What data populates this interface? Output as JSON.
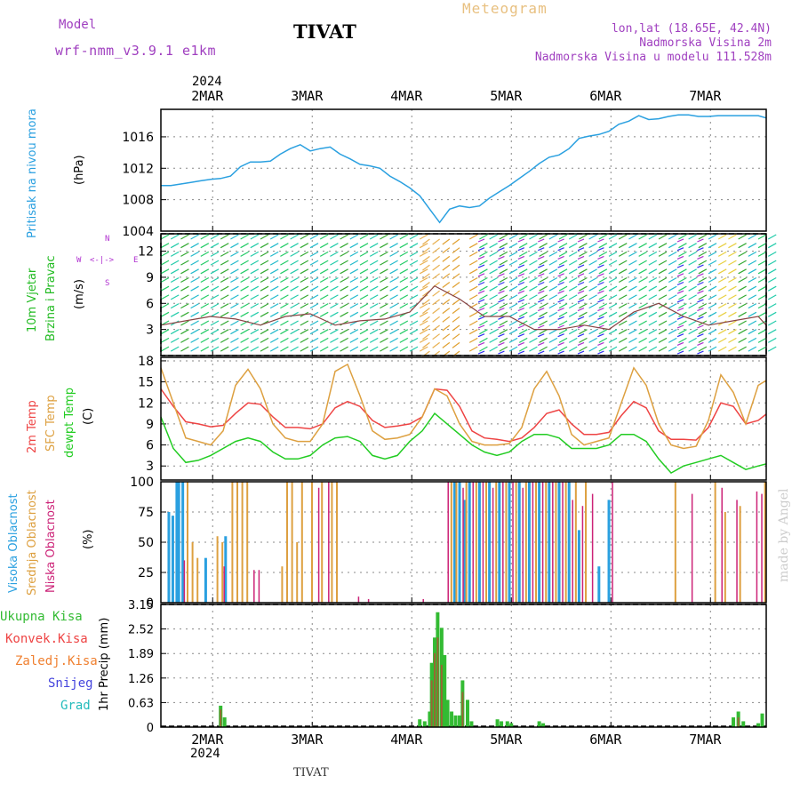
{
  "header": {
    "model_label": "Model",
    "model_name": "wrf-nmm_v3.9.1 e1km",
    "station": "TIVAT",
    "title": "Meteogram",
    "lonlat": "lon,lat (18.65E, 42.4N)",
    "elevation": "Nadmorska Visina 2m",
    "model_elevation": "Nadmorska Visina u modelu 111.528m",
    "footer_station": "TIVAT",
    "credit": "made by Angel"
  },
  "colors": {
    "pressure": "#2aa0e0",
    "temp2m": "#ee4444",
    "sfc_temp": "#dda040",
    "dewpoint": "#22cc22",
    "high_cloud": "#2aa0e0",
    "mid_cloud": "#dda040",
    "low_cloud": "#cc2277",
    "total_precip": "#33bb33",
    "conv_precip": "#ee4444",
    "freezing": "#f08030",
    "snow": "#4444dd",
    "hail": "#22bbbb",
    "header_purple": "#a040c0",
    "meteogram_title": "#e8c080"
  },
  "time_axis": {
    "year": "2024",
    "days": [
      "2MAR",
      "3MAR",
      "4MAR",
      "5MAR",
      "6MAR",
      "7MAR"
    ],
    "range_days": [
      0,
      6.08
    ]
  },
  "chart_data": [
    {
      "type": "line",
      "panel": "pressure",
      "ylabel": "Pritisak na nivou mora",
      "unit": "(hPa)",
      "yticks": [
        "1004",
        "1008",
        "1012",
        "1016"
      ],
      "ylim": [
        1004,
        1019.5
      ],
      "series": [
        {
          "x": [
            0,
            0.1,
            0.2,
            0.3,
            0.4,
            0.5,
            0.6,
            0.7,
            0.8,
            0.9,
            1.0,
            1.1,
            1.2,
            1.3,
            1.4,
            1.5,
            1.6,
            1.7,
            1.8,
            1.9,
            2.0,
            2.1,
            2.2,
            2.3,
            2.4,
            2.5,
            2.6,
            2.7,
            2.8,
            2.9,
            3.0,
            3.1,
            3.2,
            3.3,
            3.4,
            3.5,
            3.6,
            3.7,
            3.8,
            3.9,
            4.0,
            4.1,
            4.2,
            4.3,
            4.4,
            4.5,
            4.6,
            4.7,
            4.8,
            4.9,
            5.0,
            5.1,
            5.2,
            5.3,
            5.4,
            5.5,
            5.6,
            5.7,
            5.8,
            5.9,
            6.0,
            6.08
          ],
          "values": [
            1009.8,
            1009.8,
            1010.0,
            1010.2,
            1010.4,
            1010.6,
            1010.7,
            1011.0,
            1012.2,
            1012.8,
            1012.8,
            1012.9,
            1013.8,
            1014.5,
            1015.0,
            1014.2,
            1014.5,
            1014.7,
            1013.8,
            1013.2,
            1012.5,
            1012.3,
            1012.0,
            1011.0,
            1010.3,
            1009.5,
            1008.5,
            1006.8,
            1005.1,
            1006.8,
            1007.2,
            1007.0,
            1007.2,
            1008.2,
            1009.0,
            1009.8,
            1010.7,
            1011.6,
            1012.6,
            1013.4,
            1013.7,
            1014.5,
            1015.8,
            1016.1,
            1016.3,
            1016.7,
            1017.6,
            1018.0,
            1018.7,
            1018.2,
            1018.3,
            1018.6,
            1018.8,
            1018.8,
            1018.6,
            1018.6,
            1018.7,
            1018.7,
            1018.7,
            1018.7,
            1018.7,
            1018.4
          ]
        }
      ]
    },
    {
      "type": "line",
      "panel": "wind",
      "ylabel": "10m Vjetar",
      "ylabel2": "Brzina i Pravac",
      "unit": "(m/s)",
      "direction_legend": [
        "N",
        "W",
        "E",
        "S"
      ],
      "yticks": [
        "3",
        "6",
        "9",
        "12"
      ],
      "ylim": [
        0,
        14
      ],
      "series": [
        {
          "name": "speed",
          "x": [
            0,
            0.25,
            0.5,
            0.75,
            1.0,
            1.25,
            1.5,
            1.75,
            2.0,
            2.25,
            2.5,
            2.75,
            3.0,
            3.25,
            3.5,
            3.75,
            4.0,
            4.25,
            4.5,
            4.75,
            5.0,
            5.25,
            5.5,
            5.75,
            6.0,
            6.08
          ],
          "values": [
            3.5,
            4.0,
            4.5,
            4.2,
            3.5,
            4.5,
            4.8,
            3.5,
            4.0,
            4.2,
            5.0,
            8.0,
            6.5,
            4.5,
            4.5,
            3.0,
            3.0,
            3.5,
            3.0,
            5.0,
            6.0,
            4.5,
            3.5,
            4.0,
            4.5,
            3.5
          ]
        }
      ]
    },
    {
      "type": "line",
      "panel": "temperature",
      "ylabel": "2m Temp",
      "ylabel2": "SFC Temp",
      "ylabel3": "dewpt Temp",
      "unit": "(C)",
      "yticks": [
        "3",
        "6",
        "9",
        "12",
        "15",
        "18"
      ],
      "ylim": [
        1,
        18.5
      ],
      "series": [
        {
          "name": "2m Temp",
          "x": [
            0,
            0.125,
            0.25,
            0.375,
            0.5,
            0.625,
            0.75,
            0.875,
            1.0,
            1.125,
            1.25,
            1.375,
            1.5,
            1.625,
            1.75,
            1.875,
            2.0,
            2.125,
            2.25,
            2.375,
            2.5,
            2.625,
            2.75,
            2.875,
            3.0,
            3.125,
            3.25,
            3.375,
            3.5,
            3.625,
            3.75,
            3.875,
            4.0,
            4.125,
            4.25,
            4.375,
            4.5,
            4.625,
            4.75,
            4.875,
            5.0,
            5.125,
            5.25,
            5.375,
            5.5,
            5.625,
            5.75,
            5.875,
            6.0,
            6.08
          ],
          "values": [
            14.0,
            11.5,
            9.3,
            9.0,
            8.6,
            8.8,
            10.5,
            12.0,
            11.8,
            10.0,
            8.5,
            8.5,
            8.3,
            9.0,
            11.3,
            12.2,
            11.5,
            9.5,
            8.5,
            8.7,
            9.0,
            10.0,
            14.0,
            13.8,
            11.5,
            8.0,
            7.0,
            6.8,
            6.5,
            7.0,
            8.5,
            10.5,
            11.0,
            9.0,
            7.5,
            7.5,
            7.8,
            10.2,
            12.2,
            11.3,
            8.0,
            6.8,
            6.8,
            6.7,
            8.5,
            12.0,
            11.5,
            9.0,
            9.5,
            10.4
          ]
        },
        {
          "name": "SFC Temp",
          "x": [
            0,
            0.125,
            0.25,
            0.375,
            0.5,
            0.625,
            0.75,
            0.875,
            1.0,
            1.125,
            1.25,
            1.375,
            1.5,
            1.625,
            1.75,
            1.875,
            2.0,
            2.125,
            2.25,
            2.375,
            2.5,
            2.625,
            2.75,
            2.875,
            3.0,
            3.125,
            3.25,
            3.375,
            3.5,
            3.625,
            3.75,
            3.875,
            4.0,
            4.125,
            4.25,
            4.375,
            4.5,
            4.625,
            4.75,
            4.875,
            5.0,
            5.125,
            5.25,
            5.375,
            5.5,
            5.625,
            5.75,
            5.875,
            6.0,
            6.08
          ],
          "values": [
            17.0,
            12.0,
            7.0,
            6.5,
            6.0,
            8.0,
            14.5,
            16.8,
            14.0,
            9.0,
            7.0,
            6.5,
            6.5,
            9.0,
            16.5,
            17.5,
            13.0,
            8.0,
            6.8,
            7.0,
            7.5,
            10.0,
            14.0,
            13.0,
            9.0,
            6.5,
            6.0,
            6.0,
            6.2,
            8.5,
            14.0,
            16.5,
            13.0,
            7.5,
            6.0,
            6.5,
            7.0,
            12.0,
            17.0,
            14.5,
            9.0,
            6.0,
            5.5,
            5.8,
            9.5,
            16.0,
            13.5,
            9.0,
            14.5,
            15.2
          ]
        },
        {
          "name": "dewpt Temp",
          "x": [
            0,
            0.125,
            0.25,
            0.375,
            0.5,
            0.625,
            0.75,
            0.875,
            1.0,
            1.125,
            1.25,
            1.375,
            1.5,
            1.625,
            1.75,
            1.875,
            2.0,
            2.125,
            2.25,
            2.375,
            2.5,
            2.625,
            2.75,
            2.875,
            3.0,
            3.125,
            3.25,
            3.375,
            3.5,
            3.625,
            3.75,
            3.875,
            4.0,
            4.125,
            4.25,
            4.375,
            4.5,
            4.625,
            4.75,
            4.875,
            5.0,
            5.125,
            5.25,
            5.375,
            5.5,
            5.625,
            5.75,
            5.875,
            6.0,
            6.08
          ],
          "values": [
            10.0,
            5.5,
            3.5,
            3.8,
            4.5,
            5.5,
            6.5,
            7.0,
            6.5,
            5.0,
            4.0,
            4.0,
            4.5,
            6.0,
            7.0,
            7.2,
            6.5,
            4.5,
            4.0,
            4.5,
            6.5,
            8.0,
            10.5,
            9.0,
            7.5,
            6.0,
            5.0,
            4.5,
            5.0,
            6.5,
            7.5,
            7.5,
            7.0,
            5.5,
            5.5,
            5.5,
            6.0,
            7.5,
            7.5,
            6.5,
            4.0,
            2.0,
            3.0,
            3.5,
            4.0,
            4.5,
            3.5,
            2.5,
            3.0,
            3.3
          ]
        }
      ]
    },
    {
      "type": "bar",
      "panel": "clouds",
      "ylabel": "Visoka Oblacnost",
      "ylabel2": "Srednja Oblacnost",
      "ylabel3": "Niska Oblacnost",
      "unit": "(%)",
      "yticks": [
        "0",
        "25",
        "50",
        "75",
        "100"
      ],
      "ylim": [
        0,
        100
      ],
      "series": [
        {
          "name": "Visoka Oblacnost",
          "x": [
            0.08,
            0.12,
            0.16,
            0.18,
            0.22,
            0.45,
            0.65,
            2.95,
            3.0,
            3.05,
            3.1,
            3.2,
            3.3,
            3.4,
            3.5,
            3.6,
            3.7,
            3.8,
            3.9,
            4.0,
            4.1,
            4.2,
            4.4,
            4.5
          ],
          "values": [
            75,
            72,
            100,
            100,
            100,
            37,
            55,
            100,
            100,
            85,
            100,
            100,
            100,
            100,
            100,
            100,
            100,
            100,
            100,
            100,
            100,
            60,
            30,
            85
          ]
        },
        {
          "name": "Srednja Oblacnost",
          "x": [
            0.25,
            0.3,
            0.35,
            0.55,
            0.6,
            0.7,
            0.75,
            0.8,
            0.85,
            1.2,
            1.25,
            1.3,
            1.35,
            1.4,
            1.5,
            1.6,
            1.7,
            1.75,
            2.9,
            2.95,
            3.05,
            3.15,
            3.25,
            3.35,
            3.45,
            3.55,
            3.65,
            3.75,
            3.85,
            3.95,
            4.05,
            4.15,
            4.25,
            5.15,
            5.55,
            5.65,
            5.8,
            6.05
          ],
          "values": [
            100,
            50,
            37,
            55,
            50,
            100,
            100,
            100,
            100,
            30,
            100,
            100,
            50,
            100,
            100,
            100,
            100,
            100,
            100,
            100,
            100,
            100,
            100,
            100,
            100,
            100,
            100,
            100,
            100,
            100,
            100,
            100,
            100,
            100,
            100,
            75,
            80,
            100
          ]
        },
        {
          "name": "Niska Oblacnost",
          "x": [
            0.2,
            0.6,
            0.9,
            0.95,
            1.55,
            1.65,
            1.95,
            2.05,
            2.6,
            2.85,
            3.0,
            3.1,
            3.2,
            3.3,
            3.4,
            3.5,
            3.6,
            3.7,
            3.8,
            3.9,
            4.0,
            4.1,
            4.2,
            4.3,
            4.5,
            5.3,
            5.6,
            5.75,
            5.95,
            6.0
          ],
          "values": [
            35,
            30,
            27,
            27,
            95,
            100,
            5,
            3,
            3,
            100,
            95,
            100,
            100,
            95,
            100,
            100,
            95,
            100,
            100,
            100,
            100,
            85,
            80,
            90,
            100,
            90,
            95,
            85,
            92,
            90
          ]
        }
      ]
    },
    {
      "type": "bar",
      "panel": "precipitation",
      "legend": [
        "Ukupna Kisa",
        "Konvek.Kisa",
        "Zaledj.Kisa",
        "Snijeg",
        "Grad"
      ],
      "ylabel": "1hr Precip",
      "unit": "(mm)",
      "yticks": [
        "0",
        "0.63",
        "1.26",
        "1.89",
        "2.52",
        "3.15"
      ],
      "ylim": [
        0,
        3.15
      ],
      "series": [
        {
          "name": "Ukupna Kisa",
          "x": [
            0.6,
            0.64,
            2.6,
            2.65,
            2.7,
            2.72,
            2.75,
            2.78,
            2.82,
            2.85,
            2.88,
            2.92,
            2.96,
            3.0,
            3.03,
            3.08,
            3.12,
            3.38,
            3.42,
            3.48,
            3.52,
            3.8,
            3.84,
            5.75,
            5.8,
            5.85,
            6.0,
            6.04
          ],
          "values": [
            0.55,
            0.25,
            0.2,
            0.15,
            0.4,
            1.65,
            2.3,
            2.95,
            2.55,
            1.85,
            0.7,
            0.4,
            0.3,
            0.3,
            1.2,
            0.7,
            0.15,
            0.2,
            0.15,
            0.15,
            0.1,
            0.15,
            0.1,
            0.25,
            0.4,
            0.15,
            0.1,
            0.35
          ]
        },
        {
          "name": "Konvek.Kisa",
          "x": [
            0.6,
            2.72,
            2.75,
            2.78,
            2.82,
            3.03,
            5.8
          ],
          "values": [
            0.45,
            1.2,
            1.9,
            2.3,
            1.6,
            0.9,
            0.25
          ]
        }
      ]
    }
  ]
}
